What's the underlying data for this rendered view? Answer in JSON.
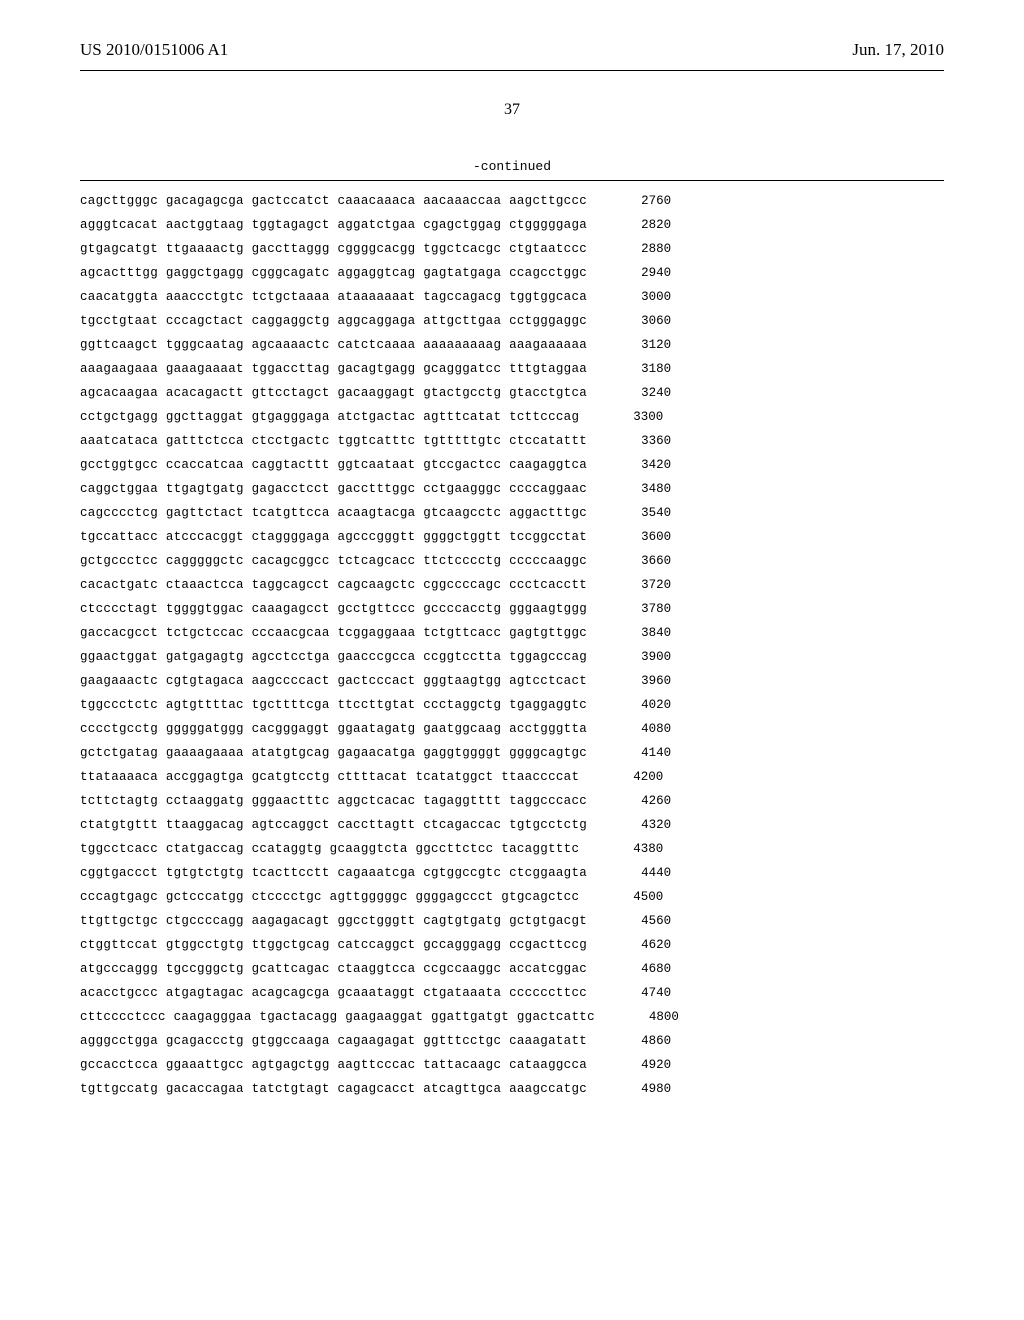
{
  "header": {
    "publication_number": "US 2010/0151006 A1",
    "publication_date": "Jun. 17, 2010"
  },
  "page_number": "37",
  "continued_label": "-continued",
  "sequence": {
    "font_family": "Courier New",
    "font_size": 12.5,
    "background_color": "#ffffff",
    "text_color": "#000000",
    "rows": [
      {
        "blocks": [
          "cagcttgggc",
          "gacagagcga",
          "gactccatct",
          "caaacaaaca",
          "aacaaaccaa",
          "aagcttgccc"
        ],
        "pos": "2760"
      },
      {
        "blocks": [
          "agggtcacat",
          "aactggtaag",
          "tggtagagct",
          "aggatctgaa",
          "cgagctggag",
          "ctgggggaga"
        ],
        "pos": "2820"
      },
      {
        "blocks": [
          "gtgagcatgt",
          "ttgaaaactg",
          "gaccttaggg",
          "cggggcacgg",
          "tggctcacgc",
          "ctgtaatccc"
        ],
        "pos": "2880"
      },
      {
        "blocks": [
          "agcactttgg",
          "gaggctgagg",
          "cgggcagatc",
          "aggaggtcag",
          "gagtatgaga",
          "ccagcctggc"
        ],
        "pos": "2940"
      },
      {
        "blocks": [
          "caacatggta",
          "aaaccctgtc",
          "tctgctaaaa",
          "ataaaaaaat",
          "tagccagacg",
          "tggtggcaca"
        ],
        "pos": "3000"
      },
      {
        "blocks": [
          "tgcctgtaat",
          "cccagctact",
          "caggaggctg",
          "aggcaggaga",
          "attgcttgaa",
          "cctgggaggc"
        ],
        "pos": "3060"
      },
      {
        "blocks": [
          "ggttcaagct",
          "tgggcaatag",
          "agcaaaactc",
          "catctcaaaa",
          "aaaaaaaaag",
          "aaagaaaaaa"
        ],
        "pos": "3120"
      },
      {
        "blocks": [
          "aaagaagaaa",
          "gaaagaaaat",
          "tggaccttag",
          "gacagtgagg",
          "gcagggatcc",
          "tttgtaggaa"
        ],
        "pos": "3180"
      },
      {
        "blocks": [
          "agcacaagaa",
          "acacagactt",
          "gttcctagct",
          "gacaaggagt",
          "gtactgcctg",
          "gtacctgtca"
        ],
        "pos": "3240"
      },
      {
        "blocks": [
          "cctgctgagg",
          "ggcttaggat",
          "gtgagggaga",
          "atctgactac",
          "agtttcatat",
          "tcttcccag"
        ],
        "pos": "3300"
      },
      {
        "blocks": [
          "aaatcataca",
          "gatttctcca",
          "ctcctgactc",
          "tggtcatttc",
          "tgtttttgtc",
          "ctccatattt"
        ],
        "pos": "3360"
      },
      {
        "blocks": [
          "gcctggtgcc",
          "ccaccatcaa",
          "caggtacttt",
          "ggtcaataat",
          "gtccgactcc",
          "caagaggtca"
        ],
        "pos": "3420"
      },
      {
        "blocks": [
          "caggctggaa",
          "ttgagtgatg",
          "gagacctcct",
          "gacctttggc",
          "cctgaagggc",
          "ccccaggaac"
        ],
        "pos": "3480"
      },
      {
        "blocks": [
          "cagcccctcg",
          "gagttctact",
          "tcatgttcca",
          "acaagtacga",
          "gtcaagcctc",
          "aggactttgc"
        ],
        "pos": "3540"
      },
      {
        "blocks": [
          "tgccattacc",
          "atcccacggt",
          "ctaggggaga",
          "agcccgggtt",
          "ggggctggtt",
          "tccggcctat"
        ],
        "pos": "3600"
      },
      {
        "blocks": [
          "gctgccctcc",
          "cagggggctc",
          "cacagcggcc",
          "tctcagcacc",
          "ttctcccctg",
          "cccccaaggc"
        ],
        "pos": "3660"
      },
      {
        "blocks": [
          "cacactgatc",
          "ctaaactcca",
          "taggcagcct",
          "cagcaagctc",
          "cggccccagc",
          "ccctcacctt"
        ],
        "pos": "3720"
      },
      {
        "blocks": [
          "ctcccctagt",
          "tggggtggac",
          "caaagagcct",
          "gcctgttccc",
          "gccccacctg",
          "gggaagtggg"
        ],
        "pos": "3780"
      },
      {
        "blocks": [
          "gaccacgcct",
          "tctgctccac",
          "cccaacgcaa",
          "tcggaggaaa",
          "tctgttcacc",
          "gagtgttggc"
        ],
        "pos": "3840"
      },
      {
        "blocks": [
          "ggaactggat",
          "gatgagagtg",
          "agcctcctga",
          "gaacccgcca",
          "ccggtcctta",
          "tggagcccag"
        ],
        "pos": "3900"
      },
      {
        "blocks": [
          "gaagaaactc",
          "cgtgtagaca",
          "aagccccact",
          "gactcccact",
          "gggtaagtgg",
          "agtcctcact"
        ],
        "pos": "3960"
      },
      {
        "blocks": [
          "tggccctctc",
          "agtgttttac",
          "tgcttttcga",
          "ttccttgtat",
          "ccctaggctg",
          "tgaggaggtc"
        ],
        "pos": "4020"
      },
      {
        "blocks": [
          "cccctgcctg",
          "gggggatggg",
          "cacgggaggt",
          "ggaatagatg",
          "gaatggcaag",
          "acctgggtta"
        ],
        "pos": "4080"
      },
      {
        "blocks": [
          "gctctgatag",
          "gaaaagaaaa",
          "atatgtgcag",
          "gagaacatga",
          "gaggtggggt",
          "ggggcagtgc"
        ],
        "pos": "4140"
      },
      {
        "blocks": [
          "ttataaaaca",
          "accggagtga",
          "gcatgtcctg",
          "cttttacat",
          "tcatatggct",
          "ttaaccccat"
        ],
        "pos": "4200"
      },
      {
        "blocks": [
          "tcttctagtg",
          "cctaaggatg",
          "gggaactttc",
          "aggctcacac",
          "tagaggtttt",
          "taggcccacc"
        ],
        "pos": "4260"
      },
      {
        "blocks": [
          "ctatgtgttt",
          "ttaaggacag",
          "agtccaggct",
          "caccttagtt",
          "ctcagaccac",
          "tgtgcctctg"
        ],
        "pos": "4320"
      },
      {
        "blocks": [
          "tggcctcacc",
          "ctatgaccag",
          "ccataggtg",
          "gcaaggtcta",
          "ggccttctcc",
          "tacaggtttc"
        ],
        "pos": "4380"
      },
      {
        "blocks": [
          "cggtgaccct",
          "tgtgtctgtg",
          "tcacttcctt",
          "cagaaatcga",
          "cgtggccgtc",
          "ctcggaagta"
        ],
        "pos": "4440"
      },
      {
        "blocks": [
          "cccagtgagc",
          "gctcccatgg",
          "ctcccctgc",
          "agttgggggc",
          "ggggagccct",
          "gtgcagctcc"
        ],
        "pos": "4500"
      },
      {
        "blocks": [
          "ttgttgctgc",
          "ctgccccagg",
          "aagagacagt",
          "ggcctgggtt",
          "cagtgtgatg",
          "gctgtgacgt"
        ],
        "pos": "4560"
      },
      {
        "blocks": [
          "ctggttccat",
          "gtggcctgtg",
          "ttggctgcag",
          "catccaggct",
          "gccagggagg",
          "ccgacttccg"
        ],
        "pos": "4620"
      },
      {
        "blocks": [
          "atgcccaggg",
          "tgccgggctg",
          "gcattcagac",
          "ctaaggtcca",
          "ccgccaaggc",
          "accatcggac"
        ],
        "pos": "4680"
      },
      {
        "blocks": [
          "acacctgccc",
          "atgagtagac",
          "acagcagcga",
          "gcaaataggt",
          "ctgataaata",
          "ccccccttcc"
        ],
        "pos": "4740"
      },
      {
        "blocks": [
          "cttcccctccc",
          "caagagggaa",
          "tgactacagg",
          "gaagaaggat",
          "ggattgatgt",
          "ggactcattc"
        ],
        "pos": "4800"
      },
      {
        "blocks": [
          "agggcctgga",
          "gcagaccctg",
          "gtggccaaga",
          "cagaagagat",
          "ggtttcctgc",
          "caaagatatt"
        ],
        "pos": "4860"
      },
      {
        "blocks": [
          "gccacctcca",
          "ggaaattgcc",
          "agtgagctgg",
          "aagttcccac",
          "tattacaagc",
          "cataaggcca"
        ],
        "pos": "4920"
      },
      {
        "blocks": [
          "tgttgccatg",
          "gacaccagaa",
          "tatctgtagt",
          "cagagcacct",
          "atcagttgca",
          "aaagccatgc"
        ],
        "pos": "4980"
      }
    ]
  }
}
